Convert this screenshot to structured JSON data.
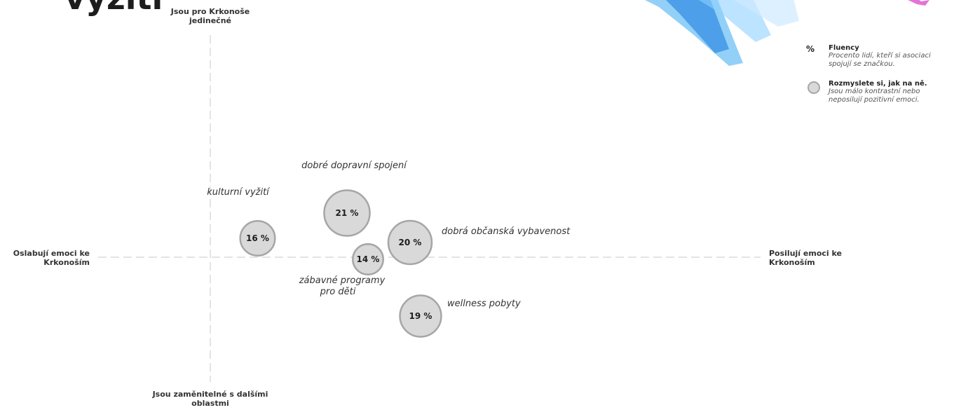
{
  "page": {
    "title": "vyžití"
  },
  "axes": {
    "top": "Jsou pro Krkonoše\njedinečné",
    "bottom": "Jsou zaměnitelné s dalšími\noblastmi",
    "left": "Oslabují emoci ke\nKrkonoším",
    "right": "Posilují emoci ke\nKrkonoším"
  },
  "legend": {
    "fluency_symbol": "%",
    "fluency_title": "Fluency",
    "fluency_desc": "Procento lidí, kteří si asociaci spojují se značkou.",
    "reconsider_title": "Rozmyslete si, jak na ně.",
    "reconsider_desc": "Jsou málo kontrastní nebo neposilují pozitivní emoci."
  },
  "colors": {
    "bubble_fill": "#d9d9d9",
    "bubble_stroke": "#a6a6a6",
    "axis": "#c8c8c8",
    "brush_blue": "#39a9f0",
    "brush_pink": "#e05ad0"
  },
  "chart_data": {
    "type": "scatter",
    "title": "",
    "xlabel": "",
    "ylabel": "",
    "xlim": [
      -1,
      1
    ],
    "ylim": [
      -1,
      1
    ],
    "grid": false,
    "series": [
      {
        "points": [
          {
            "label": "kulturní vyžití",
            "x": 0.09,
            "y": 0.09,
            "value": 16,
            "value_text": "16 %"
          },
          {
            "label": "dobré dopravní spojení",
            "x": 0.26,
            "y": 0.21,
            "value": 21,
            "value_text": "21 %"
          },
          {
            "label": "zábavné programy\npro děti",
            "x": 0.3,
            "y": -0.01,
            "value": 14,
            "value_text": "14 %"
          },
          {
            "label": "dobrá občanská vybavenost",
            "x": 0.38,
            "y": 0.07,
            "value": 20,
            "value_text": "20 %"
          },
          {
            "label": "wellness pobyty",
            "x": 0.4,
            "y": -0.28,
            "value": 19,
            "value_text": "19 %"
          }
        ]
      }
    ]
  }
}
